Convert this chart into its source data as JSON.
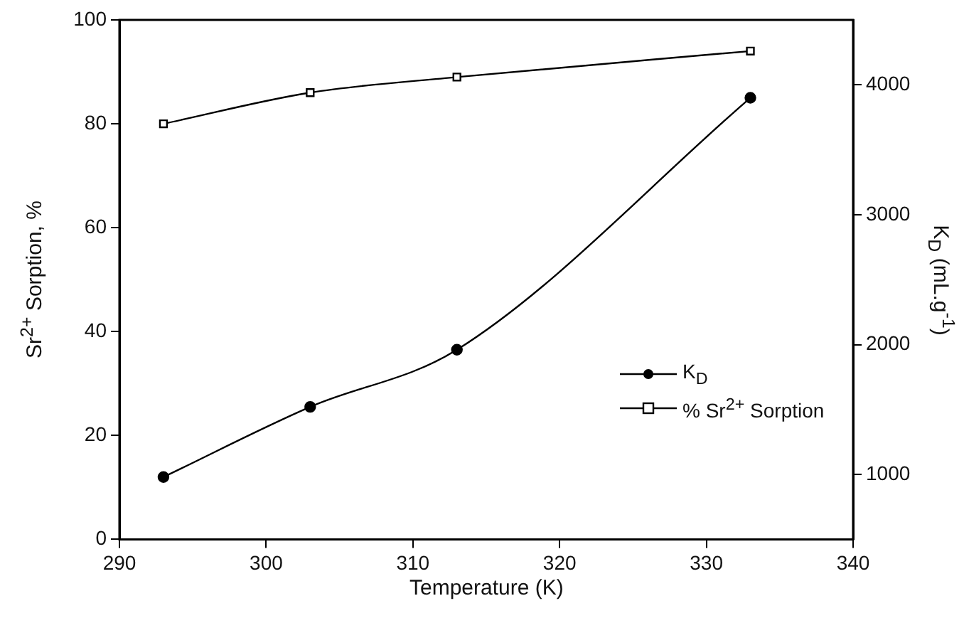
{
  "chart_data": {
    "type": "line",
    "xlabel": "Temperature (K)",
    "ylabel": "Sr$^{2+}$ Sorption, %",
    "y2label": "K$_{D}$ (mL.g$^{-1}$)",
    "x": [
      293,
      303,
      313,
      333
    ],
    "series": [
      {
        "name": "K$_{D}$",
        "color": "#000000",
        "values": [
          980,
          1520,
          1960,
          3900
        ],
        "axis": "y2",
        "marker": "circle"
      },
      {
        "name": "% Sr$^{2+}$ Sorption",
        "color": "#000000",
        "values": [
          80,
          86,
          89,
          94
        ],
        "marker": "square"
      }
    ],
    "xlim": [
      290,
      340
    ],
    "xticks": [
      290,
      300,
      310,
      320,
      330,
      340
    ],
    "ylim": [
      0,
      100
    ],
    "yticks": [
      0,
      20,
      40,
      60,
      80,
      100
    ],
    "y2lim": [
      500,
      4500
    ],
    "y2ticks": [
      1000,
      2000,
      3000,
      4000
    ],
    "grid": false,
    "legend": "bottom right",
    "line_style": "solid"
  }
}
